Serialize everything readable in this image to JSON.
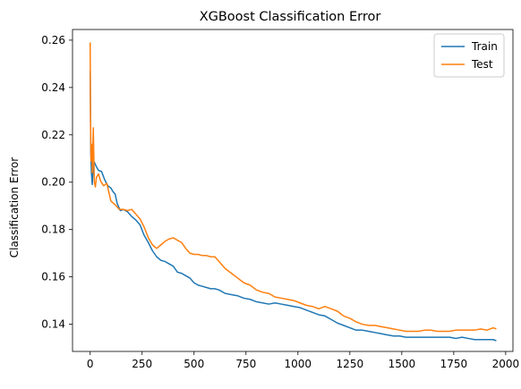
{
  "chart_data": {
    "type": "line",
    "title": "XGBoost Classification Error",
    "xlabel": "",
    "ylabel": "Classification Error",
    "xlim": [
      -85,
      2035
    ],
    "ylim": [
      0.1285,
      0.2645
    ],
    "xticks": [
      0,
      250,
      500,
      750,
      1000,
      1250,
      1500,
      1750,
      2000
    ],
    "yticks": [
      0.14,
      0.16,
      0.18,
      0.2,
      0.22,
      0.24,
      0.26
    ],
    "grid": false,
    "legend_position": "top-right",
    "series": [
      {
        "name": "Train",
        "color": "#1f77b4",
        "x": [
          0,
          3,
          6,
          10,
          15,
          20,
          30,
          40,
          55,
          70,
          85,
          100,
          110,
          120,
          130,
          145,
          160,
          180,
          200,
          220,
          240,
          260,
          280,
          300,
          320,
          340,
          360,
          380,
          400,
          420,
          440,
          460,
          480,
          500,
          520,
          540,
          560,
          580,
          600,
          620,
          650,
          680,
          710,
          740,
          770,
          800,
          830,
          860,
          890,
          920,
          950,
          980,
          1010,
          1040,
          1070,
          1100,
          1130,
          1160,
          1190,
          1220,
          1250,
          1280,
          1310,
          1340,
          1370,
          1400,
          1430,
          1460,
          1490,
          1520,
          1550,
          1580,
          1610,
          1640,
          1670,
          1700,
          1730,
          1760,
          1790,
          1820,
          1850,
          1880,
          1910,
          1940,
          1955
        ],
        "y": [
          0.247,
          0.213,
          0.204,
          0.199,
          0.2075,
          0.2085,
          0.2065,
          0.205,
          0.2045,
          0.201,
          0.1985,
          0.1975,
          0.196,
          0.195,
          0.191,
          0.188,
          0.1885,
          0.1875,
          0.1855,
          0.184,
          0.182,
          0.1775,
          0.1745,
          0.171,
          0.1685,
          0.167,
          0.1665,
          0.1655,
          0.1645,
          0.162,
          0.1615,
          0.1605,
          0.1595,
          0.1575,
          0.1565,
          0.156,
          0.1555,
          0.155,
          0.155,
          0.1545,
          0.153,
          0.1525,
          0.152,
          0.151,
          0.1505,
          0.1495,
          0.149,
          0.1485,
          0.149,
          0.1485,
          0.148,
          0.1475,
          0.147,
          0.146,
          0.145,
          0.144,
          0.1435,
          0.142,
          0.1405,
          0.1395,
          0.1385,
          0.1375,
          0.1375,
          0.137,
          0.1365,
          0.136,
          0.1355,
          0.135,
          0.135,
          0.1345,
          0.1345,
          0.1345,
          0.1345,
          0.1345,
          0.1345,
          0.1345,
          0.1345,
          0.134,
          0.1345,
          0.134,
          0.1335,
          0.1335,
          0.1335,
          0.1335,
          0.133
        ]
      },
      {
        "name": "Test",
        "color": "#ff7f0e",
        "x": [
          0,
          2,
          4,
          7,
          10,
          15,
          20,
          25,
          30,
          40,
          50,
          65,
          80,
          100,
          120,
          140,
          160,
          180,
          200,
          220,
          240,
          260,
          280,
          300,
          320,
          340,
          360,
          380,
          400,
          420,
          440,
          460,
          480,
          500,
          520,
          540,
          560,
          580,
          600,
          620,
          650,
          680,
          710,
          740,
          770,
          800,
          830,
          860,
          890,
          920,
          950,
          980,
          1010,
          1040,
          1070,
          1100,
          1130,
          1160,
          1190,
          1220,
          1250,
          1280,
          1310,
          1340,
          1370,
          1400,
          1430,
          1460,
          1490,
          1520,
          1550,
          1580,
          1610,
          1640,
          1670,
          1700,
          1730,
          1760,
          1790,
          1820,
          1850,
          1880,
          1910,
          1940,
          1955
        ],
        "y": [
          0.259,
          0.224,
          0.209,
          0.216,
          0.204,
          0.223,
          0.2,
          0.198,
          0.202,
          0.2035,
          0.2005,
          0.1985,
          0.1995,
          0.192,
          0.1905,
          0.1885,
          0.1885,
          0.188,
          0.1885,
          0.1865,
          0.1845,
          0.181,
          0.1765,
          0.1735,
          0.172,
          0.1735,
          0.175,
          0.176,
          0.1765,
          0.1755,
          0.1745,
          0.172,
          0.17,
          0.1695,
          0.1695,
          0.169,
          0.169,
          0.1685,
          0.1685,
          0.1665,
          0.1635,
          0.1615,
          0.1595,
          0.1575,
          0.1565,
          0.1545,
          0.1535,
          0.153,
          0.1515,
          0.151,
          0.1505,
          0.15,
          0.149,
          0.148,
          0.1475,
          0.1465,
          0.1475,
          0.1465,
          0.1455,
          0.1435,
          0.1425,
          0.141,
          0.14,
          0.1395,
          0.1395,
          0.139,
          0.1385,
          0.138,
          0.1375,
          0.137,
          0.137,
          0.137,
          0.1375,
          0.1375,
          0.137,
          0.137,
          0.137,
          0.1375,
          0.1375,
          0.1375,
          0.1375,
          0.138,
          0.1375,
          0.1385,
          0.138
        ]
      }
    ]
  }
}
